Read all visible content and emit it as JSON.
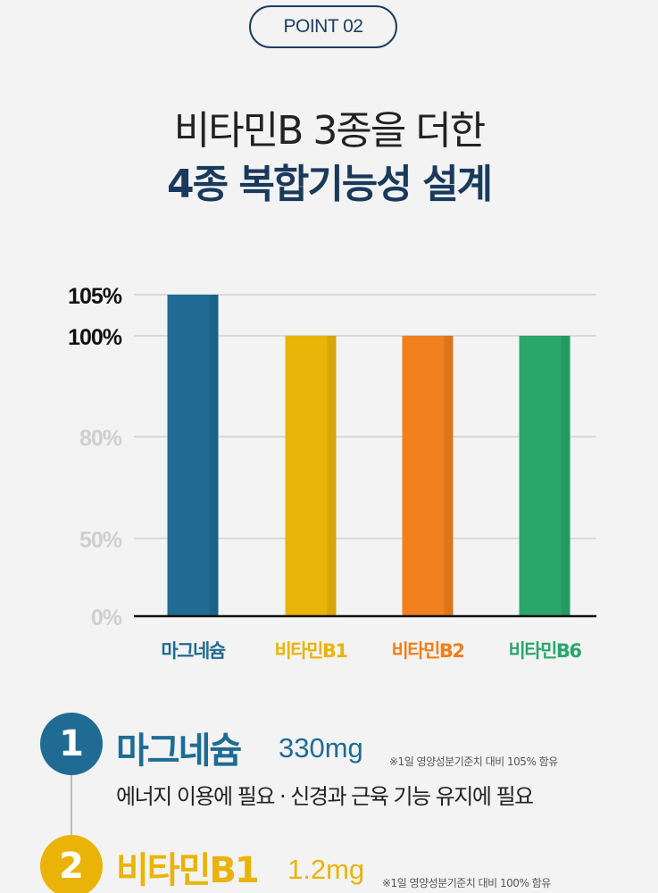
{
  "header": {
    "badge": "POINT 02",
    "title_line1": "비타민B 3종을 더한",
    "title_line2": "4종 복합기능성 설계"
  },
  "colors": {
    "navy": "#1a3a5c",
    "grid": "#c9c9c9",
    "axis": "#111111"
  },
  "chart_data": {
    "type": "bar",
    "categories": [
      "마그네슘",
      "비타민B1",
      "비타민B2",
      "비타민B6"
    ],
    "values": [
      105,
      100,
      100,
      100
    ],
    "ylim": [
      0,
      105
    ],
    "yticks": [
      "0%",
      "50%",
      "80%",
      "100%",
      "105%"
    ],
    "ytick_values": [
      0,
      50,
      80,
      100,
      105
    ],
    "grid": true,
    "colors": [
      "#1f6b93",
      "#eab308",
      "#f07f1d",
      "#2aa66a"
    ],
    "title": "",
    "xlabel": "",
    "ylabel": ""
  },
  "items": [
    {
      "number": "1",
      "title": "마그네슘",
      "amount": "330mg",
      "note": "※1일 영양성분기준치 대비 105% 함유",
      "desc": "에너지 이용에 필요 · 신경과 근육 기능 유지에 필요",
      "color": "#1f6b93"
    },
    {
      "number": "2",
      "title": "비타민B1",
      "amount": "1.2mg",
      "note": "※1일 영양성분기준치 대비 100% 함유",
      "color": "#eab308"
    }
  ]
}
